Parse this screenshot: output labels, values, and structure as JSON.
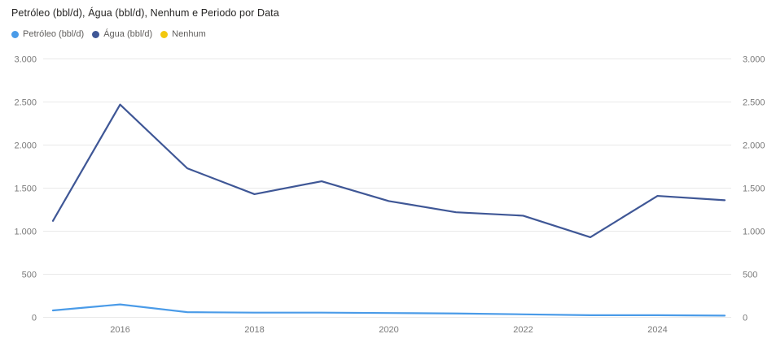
{
  "title": "Petróleo (bbl/d), Água (bbl/d), Nenhum e Periodo por Data",
  "colors": {
    "petroleo": "#4A9BE8",
    "agua": "#3F5796",
    "nenhum": "#F2C80F",
    "grid": "#E9E9E9",
    "axis_text": "#7A7A7A",
    "legend_text": "#605E5C",
    "title_text": "#252423",
    "background": "#FFFFFF"
  },
  "chart_data": {
    "type": "line",
    "title": "Petróleo (bbl/d), Água (bbl/d), Nenhum e Periodo por Data",
    "xlabel": "",
    "ylabel": "",
    "x": [
      2015,
      2016,
      2017,
      2018,
      2019,
      2020,
      2021,
      2022,
      2023,
      2024,
      2025
    ],
    "x_tick_labels": [
      "2016",
      "2018",
      "2020",
      "2022",
      "2024"
    ],
    "y_tick_labels": [
      "0",
      "500",
      "1.000",
      "1.500",
      "2.000",
      "2.500",
      "3.000"
    ],
    "y_tick_step": 500,
    "ylim": [
      0,
      3000
    ],
    "dual_y_axis": true,
    "grid": "horizontal",
    "legend_position": "top-left",
    "series": [
      {
        "name": "Petróleo (bbl/d)",
        "color": "#4A9BE8",
        "values": [
          80,
          150,
          60,
          55,
          55,
          50,
          45,
          35,
          25,
          25,
          20
        ]
      },
      {
        "name": "Água (bbl/d)",
        "color": "#3F5796",
        "values": [
          1120,
          2470,
          1730,
          1430,
          1580,
          1350,
          1220,
          1180,
          930,
          1410,
          1360
        ]
      },
      {
        "name": "Nenhum",
        "color": "#F2C80F",
        "values": []
      }
    ]
  }
}
